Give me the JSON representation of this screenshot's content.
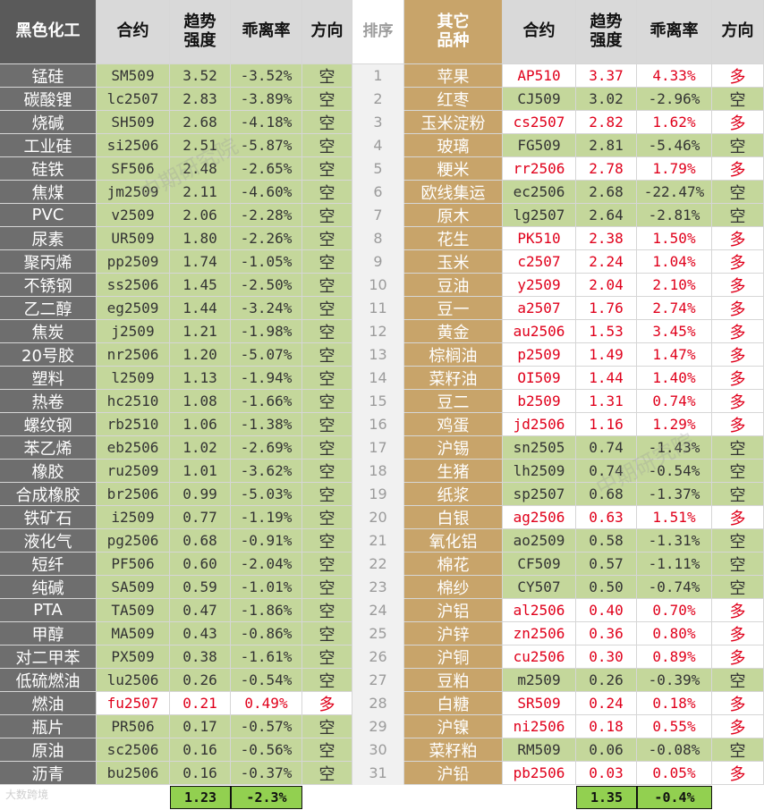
{
  "headers": {
    "left_sector": "黑色化工",
    "contract": "合约",
    "strength_line1": "趋势",
    "strength_line2": "强度",
    "deviation": "乖离率",
    "direction": "方向",
    "rank": "排序",
    "right_sector_line1": "其它",
    "right_sector_line2": "品种"
  },
  "left_rows": [
    {
      "name": "锰硅",
      "contract": "SM509",
      "strength": "3.52",
      "deviation": "-3.52%",
      "direction": "空"
    },
    {
      "name": "碳酸锂",
      "contract": "lc2507",
      "strength": "2.83",
      "deviation": "-3.89%",
      "direction": "空"
    },
    {
      "name": "烧碱",
      "contract": "SH509",
      "strength": "2.68",
      "deviation": "-4.18%",
      "direction": "空"
    },
    {
      "name": "工业硅",
      "contract": "si2506",
      "strength": "2.51",
      "deviation": "-5.87%",
      "direction": "空"
    },
    {
      "name": "硅铁",
      "contract": "SF506",
      "strength": "2.48",
      "deviation": "-2.65%",
      "direction": "空"
    },
    {
      "name": "焦煤",
      "contract": "jm2509",
      "strength": "2.11",
      "deviation": "-4.60%",
      "direction": "空"
    },
    {
      "name": "PVC",
      "contract": "v2509",
      "strength": "2.06",
      "deviation": "-2.28%",
      "direction": "空"
    },
    {
      "name": "尿素",
      "contract": "UR509",
      "strength": "1.80",
      "deviation": "-2.26%",
      "direction": "空"
    },
    {
      "name": "聚丙烯",
      "contract": "pp2509",
      "strength": "1.74",
      "deviation": "-1.05%",
      "direction": "空"
    },
    {
      "name": "不锈钢",
      "contract": "ss2506",
      "strength": "1.45",
      "deviation": "-2.50%",
      "direction": "空"
    },
    {
      "name": "乙二醇",
      "contract": "eg2509",
      "strength": "1.44",
      "deviation": "-3.24%",
      "direction": "空"
    },
    {
      "name": "焦炭",
      "contract": "j2509",
      "strength": "1.21",
      "deviation": "-1.98%",
      "direction": "空"
    },
    {
      "name": "20号胶",
      "contract": "nr2506",
      "strength": "1.20",
      "deviation": "-5.07%",
      "direction": "空"
    },
    {
      "name": "塑料",
      "contract": "l2509",
      "strength": "1.13",
      "deviation": "-1.94%",
      "direction": "空"
    },
    {
      "name": "热卷",
      "contract": "hc2510",
      "strength": "1.08",
      "deviation": "-1.66%",
      "direction": "空"
    },
    {
      "name": "螺纹钢",
      "contract": "rb2510",
      "strength": "1.06",
      "deviation": "-1.38%",
      "direction": "空"
    },
    {
      "name": "苯乙烯",
      "contract": "eb2506",
      "strength": "1.02",
      "deviation": "-2.69%",
      "direction": "空"
    },
    {
      "name": "橡胶",
      "contract": "ru2509",
      "strength": "1.01",
      "deviation": "-3.62%",
      "direction": "空"
    },
    {
      "name": "合成橡胶",
      "contract": "br2506",
      "strength": "0.99",
      "deviation": "-5.03%",
      "direction": "空"
    },
    {
      "name": "铁矿石",
      "contract": "i2509",
      "strength": "0.77",
      "deviation": "-1.19%",
      "direction": "空"
    },
    {
      "name": "液化气",
      "contract": "pg2506",
      "strength": "0.68",
      "deviation": "-0.91%",
      "direction": "空"
    },
    {
      "name": "短纤",
      "contract": "PF506",
      "strength": "0.60",
      "deviation": "-2.04%",
      "direction": "空"
    },
    {
      "name": "纯碱",
      "contract": "SA509",
      "strength": "0.59",
      "deviation": "-1.01%",
      "direction": "空"
    },
    {
      "name": "PTA",
      "contract": "TA509",
      "strength": "0.47",
      "deviation": "-1.86%",
      "direction": "空"
    },
    {
      "name": "甲醇",
      "contract": "MA509",
      "strength": "0.43",
      "deviation": "-0.86%",
      "direction": "空"
    },
    {
      "name": "对二甲苯",
      "contract": "PX509",
      "strength": "0.38",
      "deviation": "-1.61%",
      "direction": "空"
    },
    {
      "name": "低硫燃油",
      "contract": "lu2506",
      "strength": "0.26",
      "deviation": "-0.54%",
      "direction": "空"
    },
    {
      "name": "燃油",
      "contract": "fu2507",
      "strength": "0.21",
      "deviation": "0.49%",
      "direction": "多"
    },
    {
      "name": "瓶片",
      "contract": "PR506",
      "strength": "0.17",
      "deviation": "-0.57%",
      "direction": "空"
    },
    {
      "name": "原油",
      "contract": "sc2506",
      "strength": "0.16",
      "deviation": "-0.56%",
      "direction": "空"
    },
    {
      "name": "沥青",
      "contract": "bu2506",
      "strength": "0.16",
      "deviation": "-0.37%",
      "direction": "空"
    }
  ],
  "ranks": [
    "1",
    "2",
    "3",
    "4",
    "5",
    "6",
    "7",
    "8",
    "9",
    "10",
    "11",
    "12",
    "13",
    "14",
    "15",
    "16",
    "17",
    "18",
    "19",
    "20",
    "21",
    "22",
    "23",
    "24",
    "25",
    "26",
    "27",
    "28",
    "29",
    "30",
    "31"
  ],
  "right_rows": [
    {
      "name": "苹果",
      "contract": "AP510",
      "strength": "3.37",
      "deviation": "4.33%",
      "direction": "多"
    },
    {
      "name": "红枣",
      "contract": "CJ509",
      "strength": "3.02",
      "deviation": "-2.96%",
      "direction": "空"
    },
    {
      "name": "玉米淀粉",
      "contract": "cs2507",
      "strength": "2.82",
      "deviation": "1.62%",
      "direction": "多"
    },
    {
      "name": "玻璃",
      "contract": "FG509",
      "strength": "2.81",
      "deviation": "-5.46%",
      "direction": "空"
    },
    {
      "name": "粳米",
      "contract": "rr2506",
      "strength": "2.78",
      "deviation": "1.79%",
      "direction": "多"
    },
    {
      "name": "欧线集运",
      "contract": "ec2506",
      "strength": "2.68",
      "deviation": "-22.47%",
      "direction": "空"
    },
    {
      "name": "原木",
      "contract": "lg2507",
      "strength": "2.64",
      "deviation": "-2.81%",
      "direction": "空"
    },
    {
      "name": "花生",
      "contract": "PK510",
      "strength": "2.38",
      "deviation": "1.50%",
      "direction": "多"
    },
    {
      "name": "玉米",
      "contract": "c2507",
      "strength": "2.24",
      "deviation": "1.04%",
      "direction": "多"
    },
    {
      "name": "豆油",
      "contract": "y2509",
      "strength": "2.04",
      "deviation": "2.10%",
      "direction": "多"
    },
    {
      "name": "豆一",
      "contract": "a2507",
      "strength": "1.76",
      "deviation": "2.74%",
      "direction": "多"
    },
    {
      "name": "黄金",
      "contract": "au2506",
      "strength": "1.53",
      "deviation": "3.45%",
      "direction": "多"
    },
    {
      "name": "棕榈油",
      "contract": "p2509",
      "strength": "1.49",
      "deviation": "1.47%",
      "direction": "多"
    },
    {
      "name": "菜籽油",
      "contract": "OI509",
      "strength": "1.44",
      "deviation": "1.40%",
      "direction": "多"
    },
    {
      "name": "豆二",
      "contract": "b2509",
      "strength": "1.31",
      "deviation": "0.74%",
      "direction": "多"
    },
    {
      "name": "鸡蛋",
      "contract": "jd2506",
      "strength": "1.16",
      "deviation": "1.29%",
      "direction": "多"
    },
    {
      "name": "沪锡",
      "contract": "sn2505",
      "strength": "0.74",
      "deviation": "-1.43%",
      "direction": "空"
    },
    {
      "name": "生猪",
      "contract": "lh2509",
      "strength": "0.74",
      "deviation": "-0.54%",
      "direction": "空"
    },
    {
      "name": "纸浆",
      "contract": "sp2507",
      "strength": "0.68",
      "deviation": "-1.37%",
      "direction": "空"
    },
    {
      "name": "白银",
      "contract": "ag2506",
      "strength": "0.63",
      "deviation": "1.51%",
      "direction": "多"
    },
    {
      "name": "氧化铝",
      "contract": "ao2509",
      "strength": "0.58",
      "deviation": "-1.31%",
      "direction": "空"
    },
    {
      "name": "棉花",
      "contract": "CF509",
      "strength": "0.57",
      "deviation": "-1.11%",
      "direction": "空"
    },
    {
      "name": "棉纱",
      "contract": "CY507",
      "strength": "0.50",
      "deviation": "-0.74%",
      "direction": "空"
    },
    {
      "name": "沪铝",
      "contract": "al2506",
      "strength": "0.40",
      "deviation": "0.70%",
      "direction": "多"
    },
    {
      "name": "沪锌",
      "contract": "zn2506",
      "strength": "0.36",
      "deviation": "0.80%",
      "direction": "多"
    },
    {
      "name": "沪铜",
      "contract": "cu2506",
      "strength": "0.30",
      "deviation": "0.89%",
      "direction": "多"
    },
    {
      "name": "豆粕",
      "contract": "m2509",
      "strength": "0.26",
      "deviation": "-0.39%",
      "direction": "空"
    },
    {
      "name": "白糖",
      "contract": "SR509",
      "strength": "0.24",
      "deviation": "0.18%",
      "direction": "多"
    },
    {
      "name": "沪镍",
      "contract": "ni2506",
      "strength": "0.18",
      "deviation": "0.55%",
      "direction": "多"
    },
    {
      "name": "菜籽粕",
      "contract": "RM509",
      "strength": "0.06",
      "deviation": "-0.08%",
      "direction": "空"
    },
    {
      "name": "沪铅",
      "contract": "pb2506",
      "strength": "0.03",
      "deviation": "0.05%",
      "direction": "多"
    }
  ],
  "footer": {
    "left_avg_strength": "1.23",
    "left_avg_deviation": "-2.3%",
    "right_avg_strength": "1.35",
    "right_avg_deviation": "-0.4%"
  },
  "watermark": "中期研究院",
  "logo_text": "大数跨境",
  "colors": {
    "short_bg": "#c4d79b",
    "long_bg": "#ffffff",
    "long_text": "#e0001b",
    "left_header_bg": "#5a5a5a",
    "right_header_bg": "#c8a46a",
    "footer_box": "#92d050"
  }
}
